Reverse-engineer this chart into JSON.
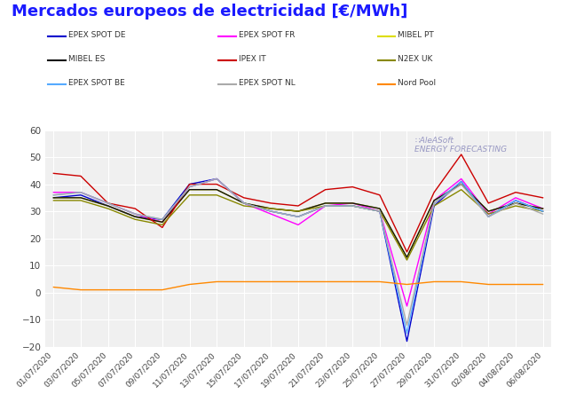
{
  "title": "Mercados europeos de electricidad [€/MWh]",
  "title_color": "#1a1aff",
  "background_color": "#ffffff",
  "plot_bg_color": "#f0f0f0",
  "grid_color": "#ffffff",
  "dates": [
    "01/07/2020",
    "03/07/2020",
    "05/07/2020",
    "07/07/2020",
    "09/07/2020",
    "11/07/2020",
    "13/07/2020",
    "15/07/2020",
    "17/07/2020",
    "19/07/2020",
    "21/07/2020",
    "23/07/2020",
    "25/07/2020",
    "27/07/2020",
    "29/07/2020",
    "31/07/2020",
    "02/08/2020",
    "04/08/2020",
    "06/08/2020"
  ],
  "series": [
    {
      "name": "EPEX SPOT DE",
      "color": "#0000cc",
      "data": [
        35,
        36,
        32,
        28,
        27,
        40,
        42,
        33,
        30,
        28,
        32,
        32,
        30,
        -18,
        32,
        41,
        28,
        34,
        30
      ]
    },
    {
      "name": "EPEX SPOT FR",
      "color": "#ff00ff",
      "data": [
        37,
        37,
        33,
        29,
        26,
        39,
        42,
        33,
        29,
        25,
        32,
        33,
        30,
        -5,
        34,
        42,
        29,
        35,
        31
      ]
    },
    {
      "name": "MIBEL PT",
      "color": "#dddd00",
      "data": [
        35,
        35,
        32,
        28,
        26,
        38,
        38,
        33,
        31,
        30,
        33,
        33,
        31,
        13,
        34,
        40,
        30,
        33,
        31
      ]
    },
    {
      "name": "MIBEL ES",
      "color": "#111111",
      "data": [
        35,
        35,
        32,
        28,
        26,
        38,
        38,
        33,
        31,
        30,
        33,
        33,
        31,
        13,
        34,
        40,
        30,
        33,
        31
      ]
    },
    {
      "name": "IPEX IT",
      "color": "#cc0000",
      "data": [
        44,
        43,
        33,
        31,
        24,
        40,
        40,
        35,
        33,
        32,
        38,
        39,
        36,
        15,
        37,
        51,
        33,
        37,
        35
      ]
    },
    {
      "name": "N2EX UK",
      "color": "#888800",
      "data": [
        34,
        34,
        31,
        27,
        25,
        36,
        36,
        32,
        31,
        30,
        32,
        32,
        30,
        12,
        32,
        38,
        29,
        32,
        30
      ]
    },
    {
      "name": "EPEX SPOT BE",
      "color": "#55aaff",
      "data": [
        36,
        37,
        33,
        29,
        27,
        39,
        42,
        33,
        30,
        28,
        32,
        32,
        30,
        -15,
        33,
        41,
        28,
        34,
        30
      ]
    },
    {
      "name": "EPEX SPOT NL",
      "color": "#aaaaaa",
      "data": [
        36,
        37,
        33,
        29,
        27,
        39,
        42,
        33,
        30,
        28,
        32,
        32,
        30,
        -12,
        33,
        40,
        28,
        33,
        29
      ]
    },
    {
      "name": "Nord Pool",
      "color": "#ff8800",
      "data": [
        2,
        1,
        1,
        1,
        1,
        3,
        4,
        4,
        4,
        4,
        4,
        4,
        4,
        3,
        4,
        4,
        3,
        3,
        3
      ]
    }
  ],
  "ylim": [
    -20,
    60
  ],
  "yticks": [
    -20,
    -10,
    0,
    10,
    20,
    30,
    40,
    50,
    60
  ],
  "legend_ncol": 3,
  "legend_rows": [
    [
      "EPEX SPOT DE",
      "EPEX SPOT FR",
      "MIBEL PT"
    ],
    [
      "MIBEL ES",
      "IPEX IT",
      "N2EX UK"
    ],
    [
      "EPEX SPOT BE",
      "EPEX SPOT NL",
      "Nord Pool"
    ]
  ]
}
